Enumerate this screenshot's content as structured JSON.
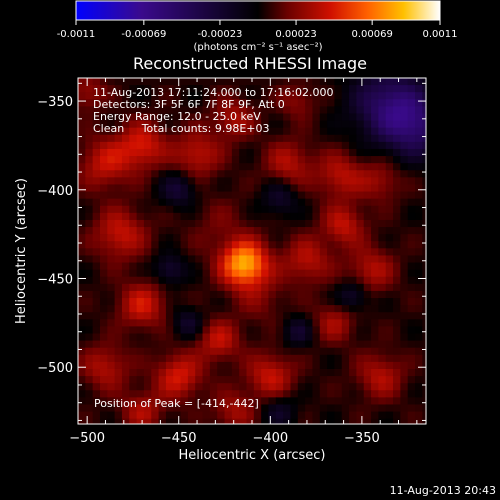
{
  "chart_data": {
    "type": "heatmap",
    "title": "Reconstructed RHESSI Image",
    "xlabel": "Heliocentric X (arcsec)",
    "ylabel": "Heliocentric Y (arcsec)",
    "xlim": [
      -505,
      -315
    ],
    "ylim": [
      -532,
      -337
    ],
    "x_ticks": [
      -500,
      -450,
      -400,
      -350
    ],
    "y_ticks": [
      -350,
      -400,
      -450,
      -500
    ],
    "colorbar": {
      "min": -0.0011,
      "max": 0.0011,
      "tick_values": [
        -0.0011,
        -0.00069,
        -0.00023,
        0.00023,
        0.00069,
        0.0011
      ],
      "tick_labels": [
        "-0.0011",
        "-0.00069",
        "-0.00023",
        "0.00023",
        "0.00069",
        "0.0011"
      ],
      "label": "(photons cm⁻² s⁻¹ asec⁻²)",
      "colors": [
        "#0000ff",
        "#3a0a8c",
        "#000000",
        "#6a0000",
        "#d01000",
        "#ff6000",
        "#ffc000",
        "#ffffff"
      ]
    },
    "annotations": [
      "11-Aug-2013 17:11:24.000 to 17:16:02.000",
      "Detectors: 3F 5F 6F 7F 8F 9F, Att 0",
      "Energy Range: 12.0 - 25.0 keV",
      "Clean     Total counts: 9.98E+03"
    ],
    "peak_text": "Position of Peak = [-414,-442]",
    "peak": {
      "x": -414,
      "y": -442
    },
    "blobs": [
      {
        "x": -414,
        "y": -442,
        "sigma": 9,
        "amp": 0.0008
      },
      {
        "x": -428,
        "y": -420,
        "sigma": 12,
        "amp": 0.00012
      },
      {
        "x": -405,
        "y": -462,
        "sigma": 10,
        "amp": 0.00014
      },
      {
        "x": -470,
        "y": -375,
        "sigma": 9,
        "amp": 0.0004
      },
      {
        "x": -490,
        "y": -385,
        "sigma": 10,
        "amp": 0.00035
      },
      {
        "x": -440,
        "y": -380,
        "sigma": 9,
        "amp": 0.00034
      },
      {
        "x": -420,
        "y": -360,
        "sigma": 8,
        "amp": 0.00028
      },
      {
        "x": -390,
        "y": -385,
        "sigma": 9,
        "amp": 0.0003
      },
      {
        "x": -362,
        "y": -392,
        "sigma": 9,
        "amp": 0.00032
      },
      {
        "x": -340,
        "y": -395,
        "sigma": 8,
        "amp": 0.00024
      },
      {
        "x": -482,
        "y": -425,
        "sigma": 10,
        "amp": 0.00036
      },
      {
        "x": -470,
        "y": -465,
        "sigma": 9,
        "amp": 0.00038
      },
      {
        "x": -490,
        "y": -500,
        "sigma": 9,
        "amp": 0.0003
      },
      {
        "x": -450,
        "y": -505,
        "sigma": 9,
        "amp": 0.0004
      },
      {
        "x": -428,
        "y": -485,
        "sigma": 8,
        "amp": 0.00034
      },
      {
        "x": -400,
        "y": -505,
        "sigma": 9,
        "amp": 0.00036
      },
      {
        "x": -380,
        "y": -440,
        "sigma": 9,
        "amp": 0.00032
      },
      {
        "x": -360,
        "y": -420,
        "sigma": 8,
        "amp": 0.00034
      },
      {
        "x": -345,
        "y": -445,
        "sigma": 9,
        "amp": 0.0003
      },
      {
        "x": -365,
        "y": -475,
        "sigma": 8,
        "amp": 0.00026
      },
      {
        "x": -340,
        "y": -505,
        "sigma": 9,
        "amp": 0.0003
      },
      {
        "x": -470,
        "y": -525,
        "sigma": 8,
        "amp": 0.00028
      },
      {
        "x": -420,
        "y": -525,
        "sigma": 8,
        "amp": 0.00026
      },
      {
        "x": -385,
        "y": -350,
        "sigma": 7,
        "amp": 0.0002
      },
      {
        "x": -500,
        "y": -345,
        "sigma": 7,
        "amp": 0.00024
      }
    ],
    "dips": [
      {
        "x": -335,
        "y": -352,
        "sigma": 14,
        "amp": -0.00055
      },
      {
        "x": -320,
        "y": -365,
        "sigma": 12,
        "amp": -0.00045
      },
      {
        "x": -450,
        "y": -400,
        "sigma": 7,
        "amp": -0.0003
      },
      {
        "x": -395,
        "y": -405,
        "sigma": 7,
        "amp": -0.00025
      },
      {
        "x": -455,
        "y": -445,
        "sigma": 6,
        "amp": -0.0003
      },
      {
        "x": -355,
        "y": -460,
        "sigma": 6,
        "amp": -0.0003
      },
      {
        "x": -445,
        "y": -475,
        "sigma": 6,
        "amp": -0.00025
      },
      {
        "x": -385,
        "y": -480,
        "sigma": 6,
        "amp": -0.00026
      },
      {
        "x": -395,
        "y": -525,
        "sigma": 7,
        "amp": -0.00022
      }
    ],
    "baseline": 5e-05
  },
  "footer": {
    "timestamp": "11-Aug-2013 20:43"
  }
}
